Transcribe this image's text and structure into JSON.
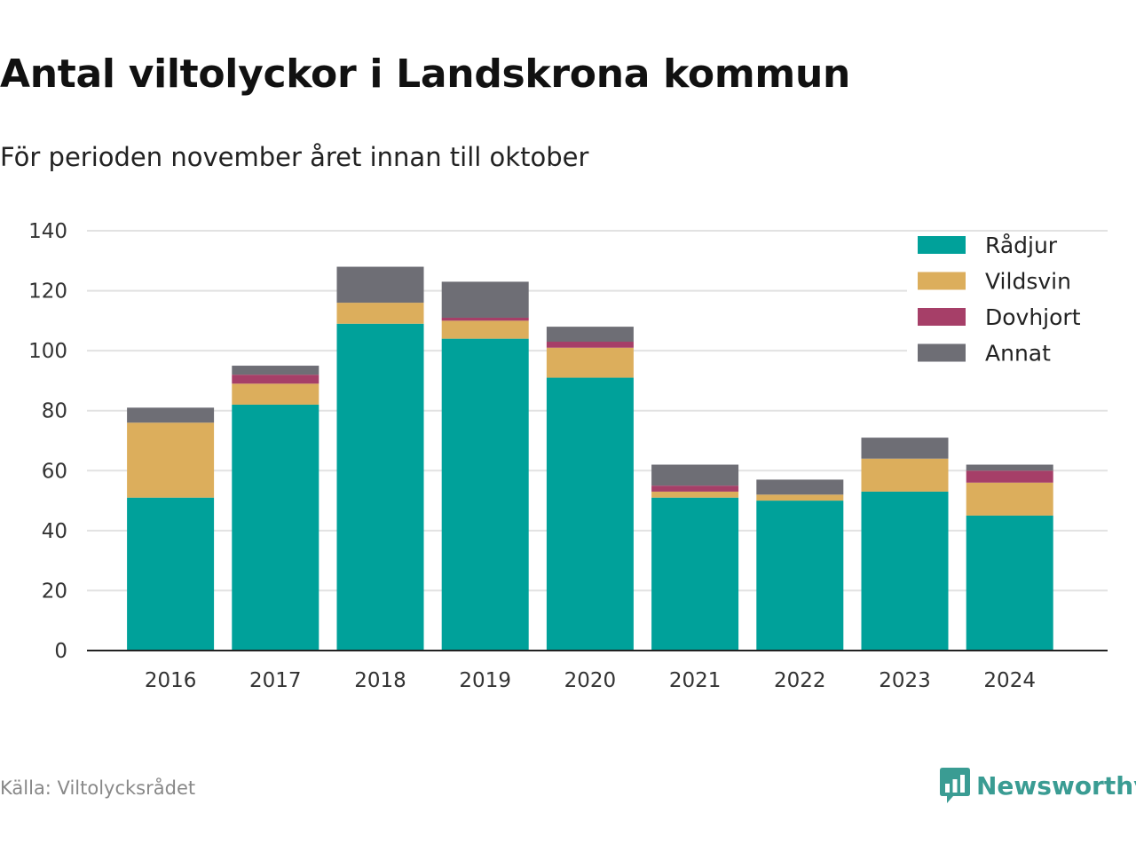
{
  "header": {
    "title": "Antal viltolyckor i Landskrona kommun",
    "subtitle": "För perioden november året innan till oktober"
  },
  "footer": {
    "source": "Källa: Viltolycksrådet",
    "brand": "Newsworthy",
    "brand_icon": "bar-chart-speech-bubble-icon",
    "brand_color": "#3a9c93"
  },
  "chart_data": {
    "type": "bar",
    "stacked": true,
    "categories": [
      "2016",
      "2017",
      "2018",
      "2019",
      "2020",
      "2021",
      "2022",
      "2023",
      "2024"
    ],
    "series": [
      {
        "name": "Rådjur",
        "color": "#00a19a",
        "values": [
          51,
          82,
          109,
          104,
          91,
          51,
          50,
          53,
          45
        ]
      },
      {
        "name": "Vildsvin",
        "color": "#dcae5c",
        "values": [
          25,
          7,
          7,
          6,
          10,
          2,
          2,
          11,
          11
        ]
      },
      {
        "name": "Dovhjort",
        "color": "#a63f68",
        "values": [
          0,
          3,
          0,
          1,
          2,
          2,
          0,
          0,
          4
        ]
      },
      {
        "name": "Annat",
        "color": "#6e6e75",
        "values": [
          5,
          3,
          12,
          12,
          5,
          7,
          5,
          7,
          2
        ]
      }
    ],
    "ylim": [
      0,
      140
    ],
    "yticks": [
      0,
      20,
      40,
      60,
      80,
      100,
      120,
      140
    ],
    "grid": true,
    "legend": "top-right"
  }
}
